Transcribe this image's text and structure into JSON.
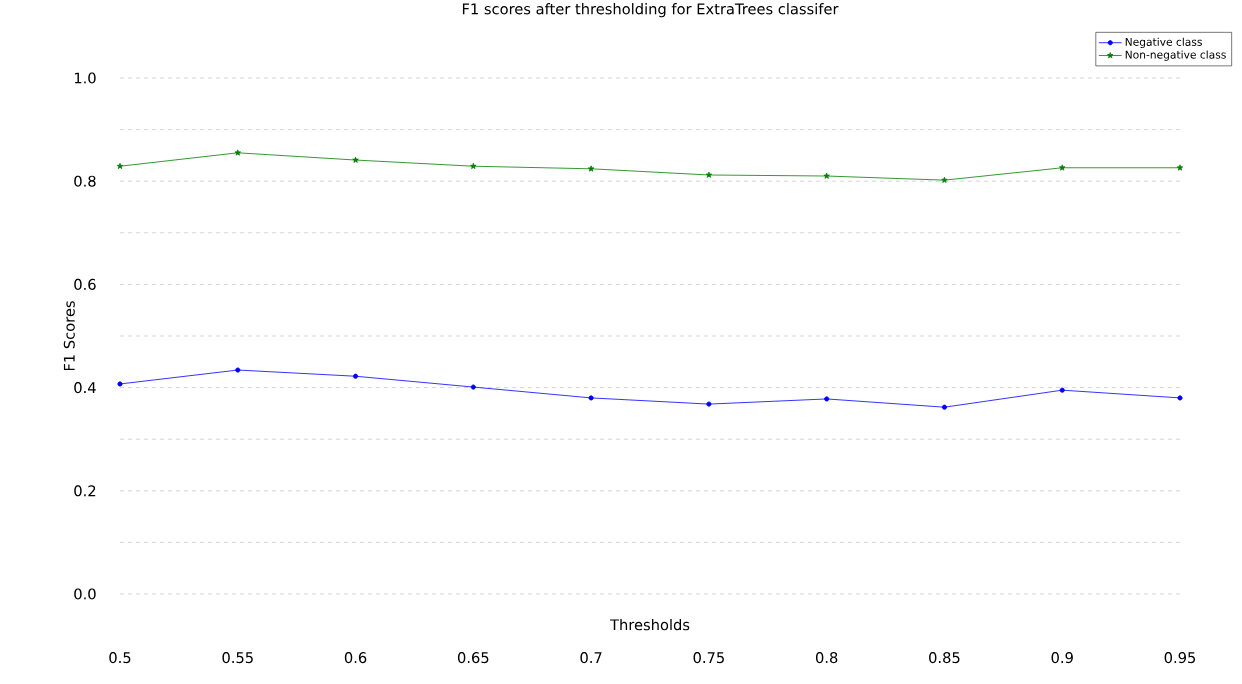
{
  "chart_data": {
    "type": "line",
    "title": "F1 scores after thresholding for ExtraTrees classifer",
    "xlabel": "Thresholds",
    "ylabel": "F1 Scores",
    "x": [
      0.5,
      0.55,
      0.6,
      0.65,
      0.7,
      0.75,
      0.8,
      0.85,
      0.9,
      0.95
    ],
    "series": [
      {
        "name": "Negative class",
        "color": "#0000ff",
        "marker": "circle",
        "values": [
          0.407,
          0.434,
          0.422,
          0.401,
          0.38,
          0.368,
          0.378,
          0.362,
          0.395,
          0.38
        ]
      },
      {
        "name": "Non-negative class",
        "color": "#008000",
        "marker": "star",
        "values": [
          0.829,
          0.855,
          0.841,
          0.829,
          0.824,
          0.812,
          0.81,
          0.802,
          0.826,
          0.826
        ]
      }
    ],
    "xlim": [
      0.5,
      0.95
    ],
    "ylim": [
      0.0,
      1.0
    ],
    "xticks": [
      0.5,
      0.55,
      0.6,
      0.65,
      0.7,
      0.75,
      0.8,
      0.85,
      0.9,
      0.95
    ],
    "yticks": [
      {
        "value": 0.0,
        "label": "0.0"
      },
      {
        "value": 0.1,
        "label": null
      },
      {
        "value": 0.2,
        "label": "0.2"
      },
      {
        "value": 0.3,
        "label": null
      },
      {
        "value": 0.4,
        "label": "0.4"
      },
      {
        "value": 0.5,
        "label": null
      },
      {
        "value": 0.6,
        "label": "0.6"
      },
      {
        "value": 0.7,
        "label": null
      },
      {
        "value": 0.8,
        "label": "0.8"
      },
      {
        "value": 0.9,
        "label": null
      },
      {
        "value": 1.0,
        "label": "1.0"
      }
    ],
    "grid": "y",
    "legend": "top right",
    "line_style": "solid"
  }
}
